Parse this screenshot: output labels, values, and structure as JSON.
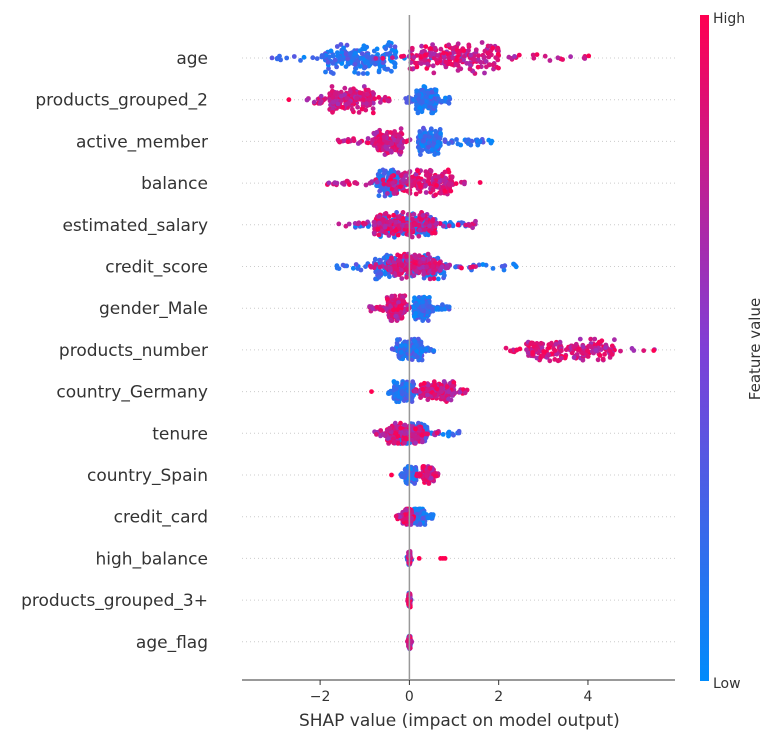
{
  "chart_data": {
    "type": "scatter",
    "subtype": "shap-beeswarm",
    "title": "",
    "xlabel": "SHAP value (impact on model output)",
    "ylabel": "",
    "xlim": [
      -3.75,
      5.95
    ],
    "xticks": [
      -2,
      0,
      2,
      4
    ],
    "xtick_labels": [
      "−2",
      "0",
      "2",
      "4"
    ],
    "grid": "faint dotted horizontal line per feature",
    "colorbar": {
      "label": "Feature value",
      "high_label": "High",
      "low_label": "Low",
      "high_color": "#ff0051",
      "mid_color": "#7f3fd6",
      "low_color": "#008bfb"
    },
    "colors": {
      "low": "#008bfb",
      "high": "#ff0051",
      "zero_line": "#999999",
      "axis": "#333333"
    },
    "features": [
      {
        "name": "age",
        "low_range": [
          -3.3,
          1.2
        ],
        "high_range": [
          -0.8,
          4.2
        ],
        "core_low": [
          -1.9,
          -0.3
        ],
        "core_high": [
          0.0,
          2.0
        ],
        "max_width": 1.0,
        "outliers": []
      },
      {
        "name": "products_grouped_2",
        "low_range": [
          -0.1,
          0.95
        ],
        "high_range": [
          -2.3,
          -0.45
        ],
        "core_low": [
          0.15,
          0.6
        ],
        "core_high": [
          -1.8,
          -0.8
        ],
        "max_width": 0.85,
        "outliers": [
          {
            "x": -2.7,
            "c": "high"
          }
        ]
      },
      {
        "name": "active_member",
        "low_range": [
          0.1,
          1.9
        ],
        "high_range": [
          -1.7,
          0.05
        ],
        "core_low": [
          0.2,
          0.7
        ],
        "core_high": [
          -0.8,
          -0.15
        ],
        "max_width": 0.85,
        "outliers": []
      },
      {
        "name": "balance",
        "low_range": [
          -0.9,
          0.6
        ],
        "high_range": [
          -1.85,
          1.85
        ],
        "core_low": [
          -0.7,
          -0.2
        ],
        "core_high": [
          -0.5,
          1.0
        ],
        "max_width": 0.85,
        "outliers": []
      },
      {
        "name": "estimated_salary",
        "low_range": [
          -1.3,
          1.4
        ],
        "high_range": [
          -1.6,
          1.55
        ],
        "core_low": [
          -0.8,
          0.6
        ],
        "core_high": [
          -0.8,
          0.6
        ],
        "max_width": 0.8,
        "outliers": []
      },
      {
        "name": "credit_score",
        "low_range": [
          -1.8,
          2.5
        ],
        "high_range": [
          -0.9,
          1.5
        ],
        "core_low": [
          -0.8,
          0.8
        ],
        "core_high": [
          -0.5,
          0.7
        ],
        "max_width": 0.8,
        "outliers": []
      },
      {
        "name": "gender_Male",
        "low_range": [
          0.05,
          0.9
        ],
        "high_range": [
          -0.9,
          0.0
        ],
        "core_low": [
          0.1,
          0.45
        ],
        "core_high": [
          -0.5,
          -0.1
        ],
        "max_width": 0.8,
        "outliers": []
      },
      {
        "name": "products_number",
        "low_range": [
          -0.4,
          0.55
        ],
        "high_range": [
          2.1,
          5.5
        ],
        "core_low": [
          -0.3,
          0.3
        ],
        "core_high": [
          2.6,
          4.6
        ],
        "max_width": 0.7,
        "outliers": []
      },
      {
        "name": "country_Germany",
        "low_range": [
          -0.5,
          0.2
        ],
        "high_range": [
          0.1,
          1.3
        ],
        "core_low": [
          -0.35,
          0.1
        ],
        "core_high": [
          0.25,
          1.0
        ],
        "max_width": 0.65,
        "outliers": [
          {
            "x": -0.85,
            "c": "high"
          }
        ]
      },
      {
        "name": "tenure",
        "low_range": [
          -0.6,
          1.2
        ],
        "high_range": [
          -0.8,
          0.7
        ],
        "core_low": [
          -0.4,
          0.4
        ],
        "core_high": [
          -0.5,
          0.3
        ],
        "max_width": 0.65,
        "outliers": []
      },
      {
        "name": "country_Spain",
        "low_range": [
          -0.2,
          0.25
        ],
        "high_range": [
          0.15,
          0.65
        ],
        "core_low": [
          -0.1,
          0.15
        ],
        "core_high": [
          0.3,
          0.55
        ],
        "max_width": 0.55,
        "outliers": [
          {
            "x": -0.4,
            "c": "high"
          }
        ]
      },
      {
        "name": "credit_card",
        "low_range": [
          0.05,
          0.55
        ],
        "high_range": [
          -0.3,
          0.1
        ],
        "core_low": [
          0.1,
          0.35
        ],
        "core_high": [
          -0.15,
          0.05
        ],
        "max_width": 0.5,
        "outliers": []
      },
      {
        "name": "high_balance",
        "low_range": [
          -0.06,
          0.06
        ],
        "high_range": [
          -0.04,
          0.04
        ],
        "core_low": [
          -0.02,
          0.02
        ],
        "core_high": [
          -0.02,
          0.02
        ],
        "max_width": 0.45,
        "outliers": [
          {
            "x": 0.22,
            "c": "high"
          },
          {
            "x": 0.7,
            "c": "high"
          },
          {
            "x": 0.75,
            "c": "high"
          },
          {
            "x": 0.8,
            "c": "high"
          }
        ]
      },
      {
        "name": "products_grouped_3+",
        "low_range": [
          -0.04,
          0.04
        ],
        "high_range": [
          -0.04,
          0.04
        ],
        "core_low": [
          -0.02,
          0.02
        ],
        "core_high": [
          -0.02,
          0.02
        ],
        "max_width": 0.45,
        "outliers": []
      },
      {
        "name": "age_flag",
        "low_range": [
          -0.05,
          0.05
        ],
        "high_range": [
          -0.05,
          0.05
        ],
        "core_low": [
          -0.02,
          0.02
        ],
        "core_high": [
          -0.02,
          0.02
        ],
        "max_width": 0.45,
        "outliers": []
      }
    ]
  }
}
